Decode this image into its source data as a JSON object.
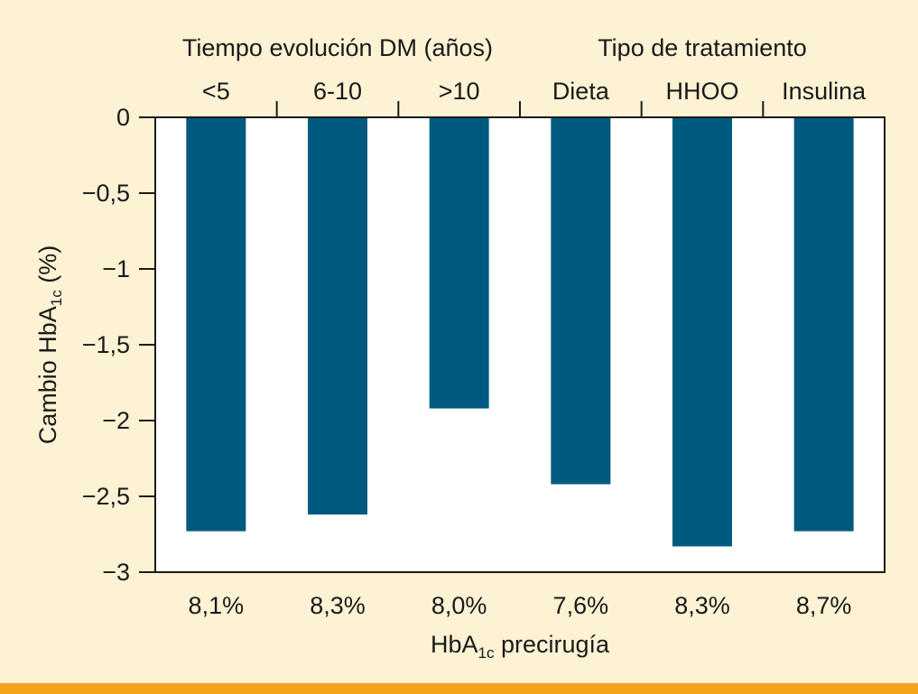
{
  "chart_data": {
    "type": "bar",
    "groups": [
      {
        "label": "Tiempo evolución DM (años)",
        "category_indices": [
          0,
          1,
          2
        ]
      },
      {
        "label": "Tipo de tratamiento",
        "category_indices": [
          3,
          4,
          5
        ]
      }
    ],
    "categories": [
      "<5",
      "6-10",
      ">10",
      "Dieta",
      "HHOO",
      "Insulina"
    ],
    "values": [
      -2.73,
      -2.62,
      -1.92,
      -2.42,
      -2.83,
      -2.73
    ],
    "bottom_labels": [
      "8,1%",
      "8,3%",
      "8,0%",
      "7,6%",
      "8,3%",
      "8,7%"
    ],
    "xlabel": {
      "base": "HbA",
      "sub": "1c",
      "rest": " precirugía"
    },
    "ylabel": {
      "base": "Cambio HbA",
      "sub": "1c",
      "rest": " (%)"
    },
    "ylim": [
      -3,
      0
    ],
    "yticks": [
      0,
      -0.5,
      -1,
      -1.5,
      -2,
      -2.5,
      -3
    ],
    "ytick_labels": [
      "0",
      "−0,5",
      "−1",
      "−1,5",
      "−2",
      "−2,5",
      "−3"
    ],
    "bar_color": "#005a80",
    "plot_background": "#ffffff",
    "grid": false
  },
  "colors": {
    "page_background": "#fdf2d4",
    "accent_bar": "#f5a31a"
  }
}
